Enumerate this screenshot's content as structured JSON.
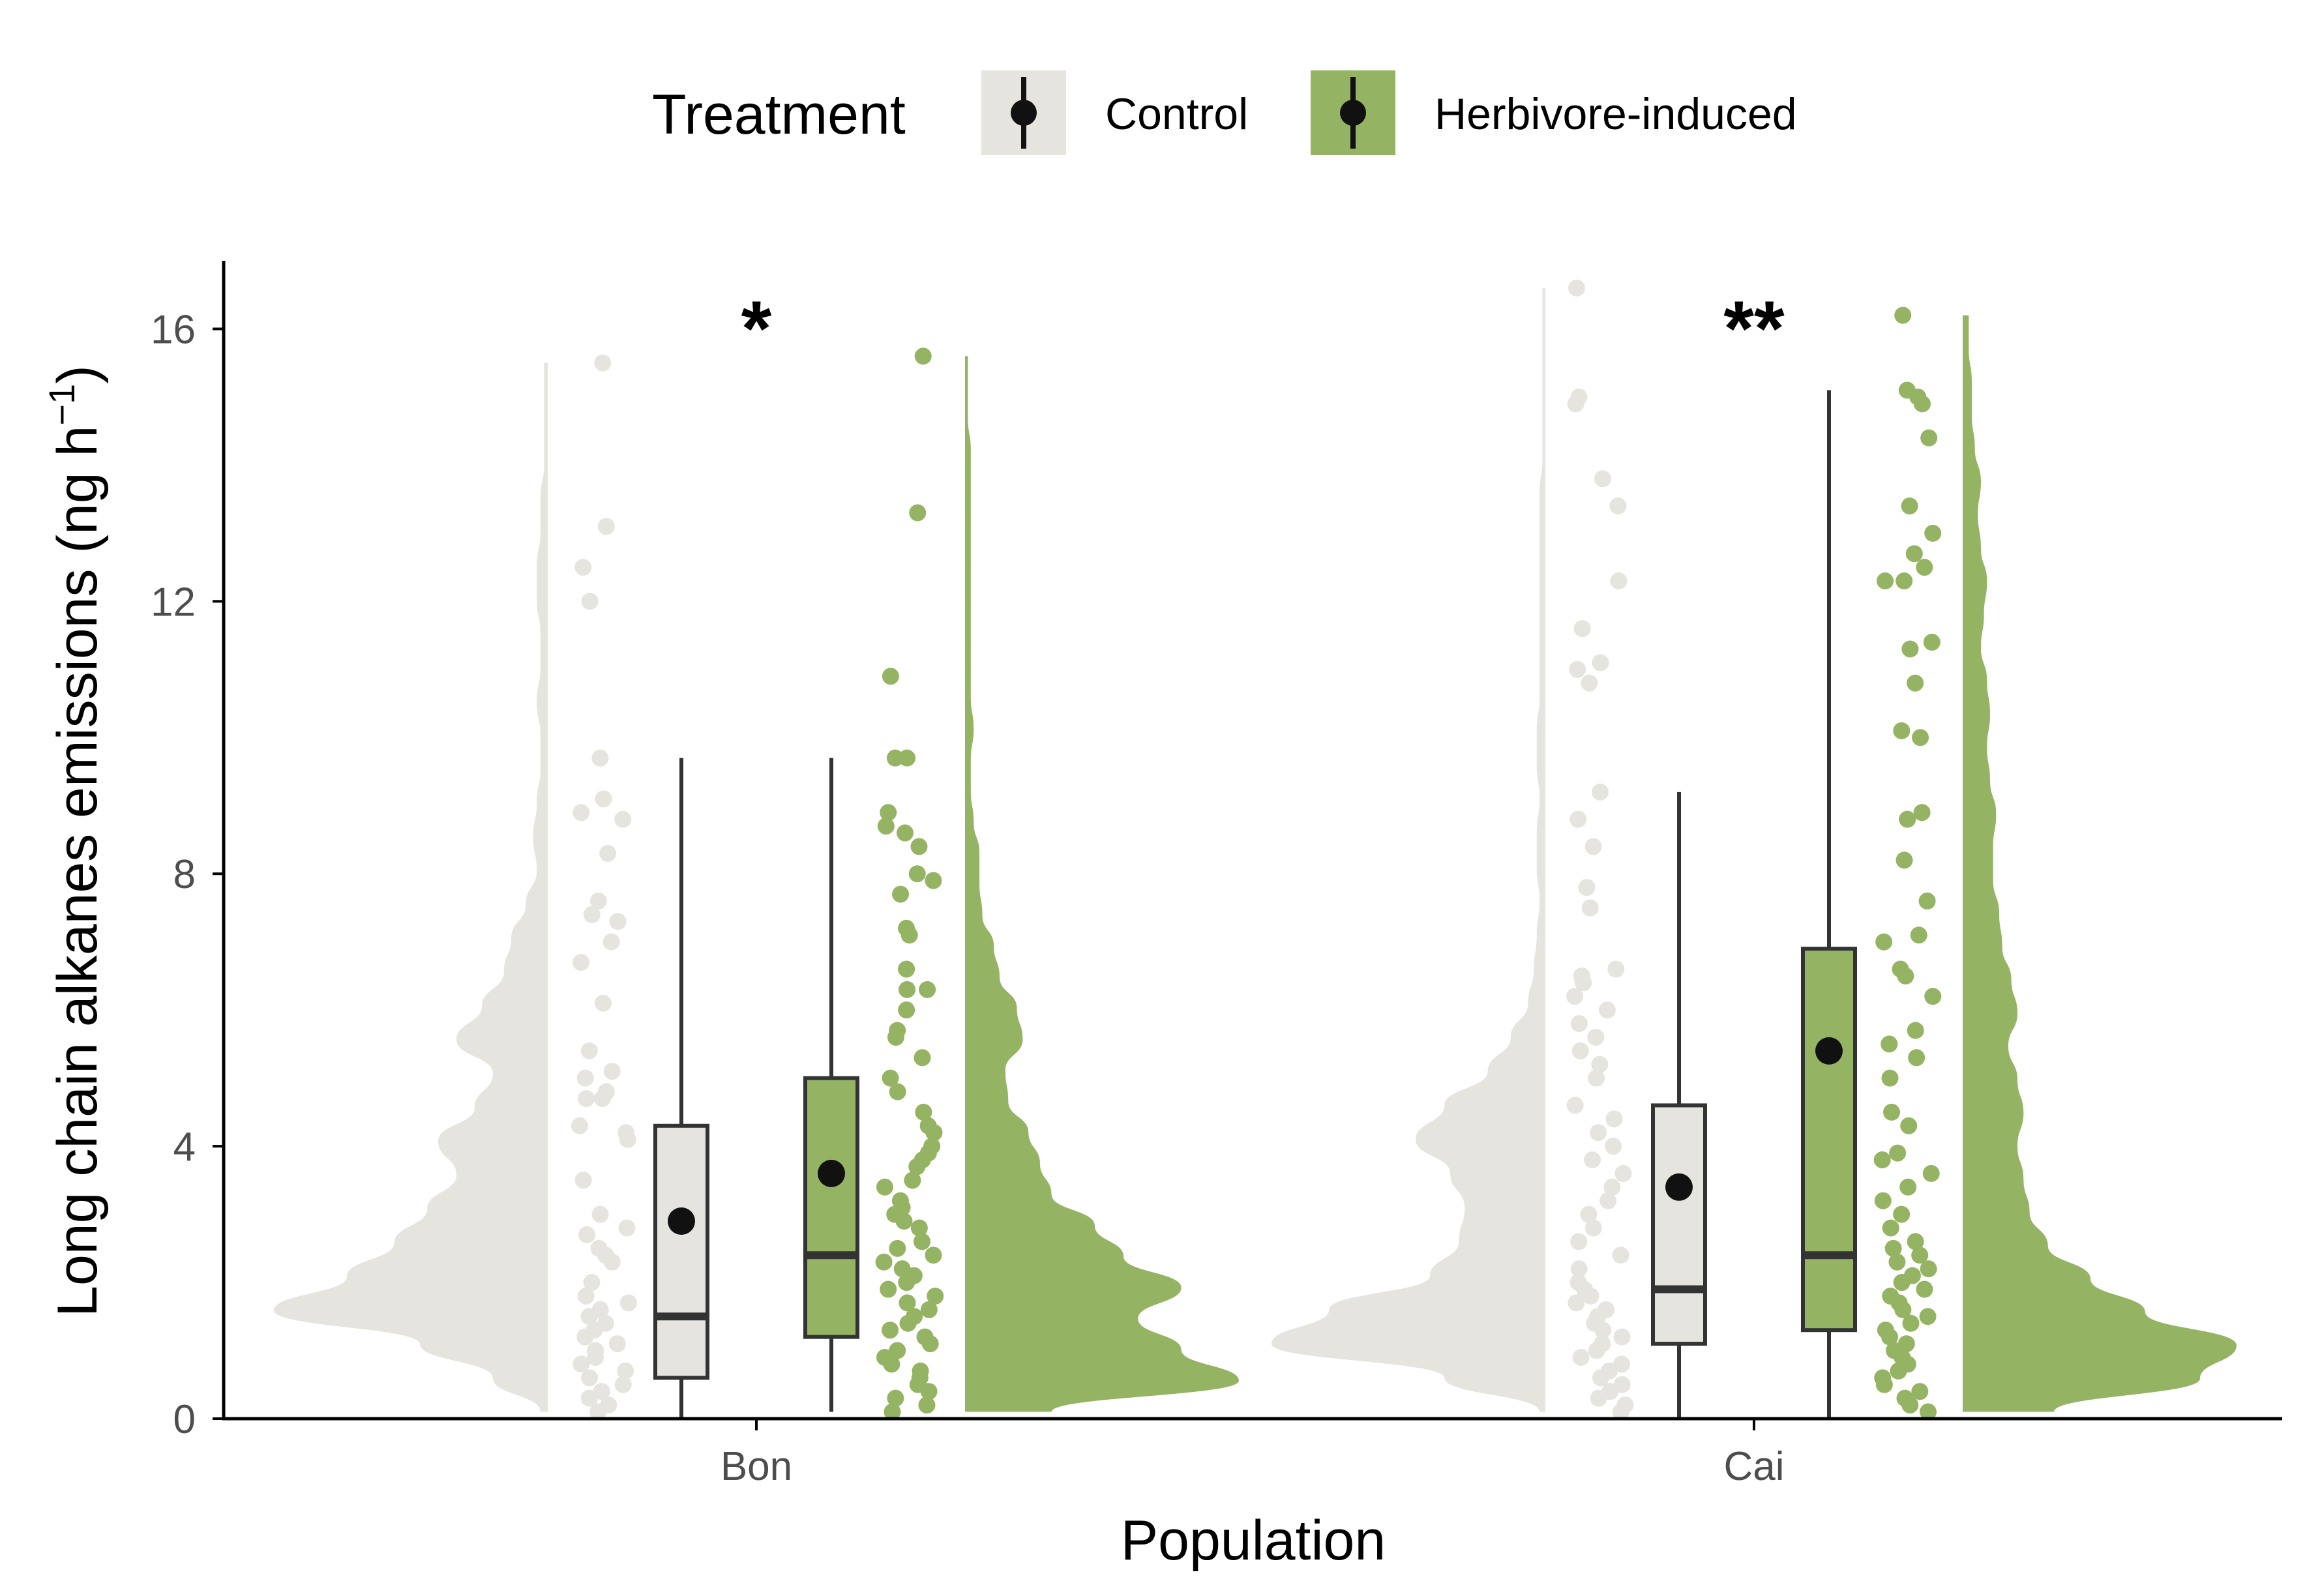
{
  "chart_data": {
    "type": "raincloud",
    "xlabel": "Population",
    "ylabel": "Long chain alkanes emissions (ng h",
    "ylabel_sup": "−1",
    "ylabel_close": ")",
    "ylim": [
      0,
      17
    ],
    "yticks": [
      0,
      4,
      8,
      12,
      16
    ],
    "categories": [
      "Bon",
      "Cai"
    ],
    "legend": {
      "title": "Treatment",
      "position": "top",
      "entries": [
        {
          "label": "Control",
          "color": "#e5e4df"
        },
        {
          "label": "Herbivore-induced",
          "color": "#94b464"
        }
      ]
    },
    "significance": [
      "*",
      "**"
    ],
    "groups": [
      {
        "population": "Bon",
        "treatment": "Control",
        "color": "#e5e4df",
        "box": {
          "q1": 0.6,
          "median": 1.5,
          "q3": 4.3,
          "lower": 0.0,
          "upper": 9.7
        },
        "mean": 2.9,
        "points": [
          15.5,
          13.1,
          12.5,
          12.0,
          9.7,
          9.1,
          8.9,
          8.8,
          8.3,
          7.6,
          7.4,
          7.3,
          7.0,
          6.7,
          6.1,
          5.4,
          5.1,
          5.0,
          4.8,
          4.7,
          4.7,
          4.3,
          4.2,
          4.1,
          3.5,
          3.0,
          2.8,
          2.7,
          2.5,
          2.4,
          2.3,
          2.0,
          1.8,
          1.7,
          1.6,
          1.5,
          1.4,
          1.3,
          1.2,
          1.1,
          1.0,
          0.9,
          0.8,
          0.7,
          0.6,
          0.5,
          0.4,
          0.3,
          0.2,
          0.1
        ],
        "density": [
          0.02,
          0.15,
          0.35,
          0.75,
          0.55,
          0.42,
          0.33,
          0.25,
          0.3,
          0.2,
          0.15,
          0.25,
          0.18,
          0.12,
          0.1,
          0.06,
          0.03,
          0.04,
          0.03,
          0.02,
          0.02,
          0.03,
          0.02,
          0.02,
          0.03,
          0.03,
          0.02,
          0.02,
          0.01,
          0.01,
          0.01,
          0.01
        ]
      },
      {
        "population": "Bon",
        "treatment": "Herbivore-induced",
        "color": "#94b464",
        "box": {
          "q1": 1.2,
          "median": 2.4,
          "q3": 5.0,
          "lower": 0.1,
          "upper": 9.7
        },
        "mean": 3.6,
        "points": [
          15.6,
          13.3,
          10.9,
          9.7,
          9.7,
          8.9,
          8.7,
          8.6,
          8.4,
          8.0,
          7.9,
          7.7,
          7.2,
          7.1,
          6.6,
          6.3,
          6.3,
          6.0,
          5.7,
          5.6,
          5.3,
          5.0,
          4.8,
          4.5,
          4.3,
          4.2,
          4.0,
          3.9,
          3.8,
          3.7,
          3.5,
          3.4,
          3.2,
          3.1,
          3.0,
          2.9,
          2.8,
          2.6,
          2.5,
          2.4,
          2.3,
          2.2,
          2.1,
          2.0,
          1.9,
          1.8,
          1.7,
          1.6,
          1.5,
          1.4,
          1.3,
          1.2,
          1.1,
          1.0,
          0.9,
          0.8,
          0.7,
          0.6,
          0.5,
          0.4,
          0.3,
          0.2,
          0.1
        ],
        "density": [
          0.3,
          0.95,
          0.75,
          0.6,
          0.75,
          0.55,
          0.45,
          0.3,
          0.26,
          0.22,
          0.15,
          0.14,
          0.2,
          0.18,
          0.12,
          0.1,
          0.06,
          0.05,
          0.05,
          0.03,
          0.02,
          0.02,
          0.03,
          0.02,
          0.02,
          0.02,
          0.02,
          0.02,
          0.02,
          0.02,
          0.02,
          0.02,
          0.01,
          0.01,
          0.01
        ]
      },
      {
        "population": "Cai",
        "treatment": "Control",
        "color": "#e5e4df",
        "box": {
          "q1": 1.1,
          "median": 1.9,
          "q3": 4.6,
          "lower": 0.0,
          "upper": 9.2
        },
        "mean": 3.4,
        "points": [
          16.6,
          15.0,
          14.9,
          13.8,
          13.4,
          12.3,
          11.6,
          11.1,
          11.0,
          10.8,
          9.2,
          8.8,
          8.4,
          7.8,
          7.5,
          6.6,
          6.5,
          6.4,
          6.2,
          6.0,
          5.8,
          5.6,
          5.4,
          5.2,
          5.0,
          4.6,
          4.4,
          4.2,
          4.0,
          3.8,
          3.6,
          3.4,
          3.2,
          3.0,
          2.8,
          2.6,
          2.4,
          2.2,
          2.0,
          1.9,
          1.8,
          1.7,
          1.6,
          1.5,
          1.4,
          1.3,
          1.2,
          1.1,
          1.0,
          0.9,
          0.8,
          0.7,
          0.6,
          0.5,
          0.4,
          0.3,
          0.2,
          0.1
        ],
        "density": [
          0.02,
          0.35,
          0.95,
          0.75,
          0.4,
          0.3,
          0.28,
          0.33,
          0.45,
          0.35,
          0.2,
          0.12,
          0.06,
          0.04,
          0.03,
          0.02,
          0.03,
          0.03,
          0.02,
          0.03,
          0.03,
          0.02,
          0.02,
          0.02,
          0.02,
          0.02,
          0.02,
          0.02,
          0.01,
          0.01,
          0.01,
          0.01,
          0.01,
          0.01
        ]
      },
      {
        "population": "Cai",
        "treatment": "Herbivore-induced",
        "color": "#94b464",
        "box": {
          "q1": 1.3,
          "median": 2.4,
          "q3": 6.9,
          "lower": 0.0,
          "upper": 15.1
        },
        "mean": 5.4,
        "points": [
          16.2,
          15.1,
          15.0,
          14.9,
          14.4,
          13.4,
          13.0,
          12.7,
          12.5,
          12.3,
          12.3,
          11.4,
          11.3,
          10.8,
          10.1,
          10.0,
          8.9,
          8.8,
          8.2,
          7.6,
          7.1,
          7.0,
          6.6,
          6.5,
          6.2,
          5.7,
          5.5,
          5.3,
          5.0,
          4.5,
          4.3,
          3.9,
          3.8,
          3.6,
          3.4,
          3.2,
          3.0,
          2.8,
          2.6,
          2.5,
          2.4,
          2.3,
          2.2,
          2.1,
          2.0,
          1.9,
          1.8,
          1.7,
          1.6,
          1.5,
          1.4,
          1.3,
          1.2,
          1.1,
          1.0,
          0.9,
          0.8,
          0.7,
          0.6,
          0.5,
          0.4,
          0.3,
          0.2,
          0.1
        ],
        "density": [
          0.3,
          0.78,
          0.9,
          0.6,
          0.42,
          0.28,
          0.22,
          0.2,
          0.18,
          0.2,
          0.18,
          0.15,
          0.18,
          0.16,
          0.13,
          0.12,
          0.1,
          0.1,
          0.11,
          0.09,
          0.08,
          0.09,
          0.08,
          0.06,
          0.07,
          0.08,
          0.06,
          0.05,
          0.06,
          0.04,
          0.03,
          0.03,
          0.02,
          0.02
        ]
      }
    ]
  }
}
